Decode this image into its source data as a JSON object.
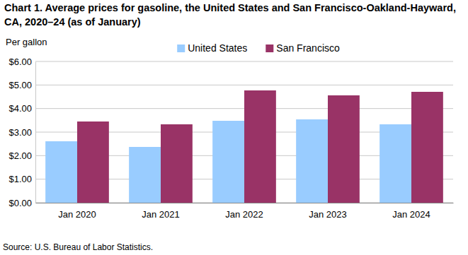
{
  "chart_data": {
    "type": "bar",
    "title": "Chart 1. Average prices for gasoline, the United States and San Francisco-Oakland-Hayward, CA, 2020–24 (as of January)",
    "y_label": "Per gallon",
    "source": "Source: U.S. Bureau of Labor Statistics.",
    "categories": [
      "Jan 2020",
      "Jan 2021",
      "Jan 2022",
      "Jan 2023",
      "Jan 2024"
    ],
    "series": [
      {
        "name": "United States",
        "color": "#99ccff",
        "values": [
          2.61,
          2.37,
          3.48,
          3.54,
          3.33
        ]
      },
      {
        "name": "San Francisco",
        "color": "#993366",
        "values": [
          3.45,
          3.33,
          4.77,
          4.56,
          4.71
        ]
      }
    ],
    "ylim": [
      0,
      6
    ],
    "yticks": [
      {
        "value": 0,
        "label": "$0.00"
      },
      {
        "value": 1,
        "label": "$1.00"
      },
      {
        "value": 2,
        "label": "$2.00"
      },
      {
        "value": 3,
        "label": "$3.00"
      },
      {
        "value": 4,
        "label": "$4.00"
      },
      {
        "value": 5,
        "label": "$5.00"
      },
      {
        "value": 6,
        "label": "$6.00"
      }
    ],
    "grid": true,
    "legend": "top"
  }
}
